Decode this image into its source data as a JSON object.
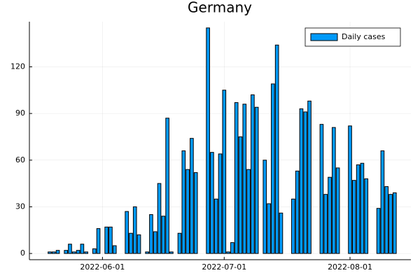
{
  "chart_data": {
    "type": "bar",
    "title": "Germany",
    "x": [
      "2022-05-19",
      "2022-05-20",
      "2022-05-21",
      "2022-05-23",
      "2022-05-24",
      "2022-05-25",
      "2022-05-26",
      "2022-05-27",
      "2022-05-28",
      "2022-05-30",
      "2022-05-31",
      "2022-06-02",
      "2022-06-03",
      "2022-06-04",
      "2022-06-07",
      "2022-06-08",
      "2022-06-09",
      "2022-06-10",
      "2022-06-12",
      "2022-06-13",
      "2022-06-14",
      "2022-06-15",
      "2022-06-16",
      "2022-06-17",
      "2022-06-18",
      "2022-06-20",
      "2022-06-21",
      "2022-06-22",
      "2022-06-23",
      "2022-06-24",
      "2022-06-27",
      "2022-06-28",
      "2022-06-29",
      "2022-06-30",
      "2022-07-01",
      "2022-07-02",
      "2022-07-03",
      "2022-07-04",
      "2022-07-05",
      "2022-07-06",
      "2022-07-07",
      "2022-07-08",
      "2022-07-09",
      "2022-07-11",
      "2022-07-12",
      "2022-07-13",
      "2022-07-14",
      "2022-07-15",
      "2022-07-18",
      "2022-07-19",
      "2022-07-20",
      "2022-07-21",
      "2022-07-22",
      "2022-07-25",
      "2022-07-26",
      "2022-07-27",
      "2022-07-28",
      "2022-07-29",
      "2022-08-01",
      "2022-08-02",
      "2022-08-03",
      "2022-08-04",
      "2022-08-05",
      "2022-08-08",
      "2022-08-09",
      "2022-08-10",
      "2022-08-11",
      "2022-08-12"
    ],
    "series": [
      {
        "name": "Daily cases",
        "color": "#009af9",
        "values": [
          1,
          1,
          2,
          2,
          6,
          1,
          2,
          6,
          1,
          3,
          16,
          17,
          17,
          5,
          27,
          13,
          30,
          12,
          1,
          25,
          14,
          45,
          24,
          87,
          1,
          13,
          66,
          54,
          74,
          52,
          145,
          65,
          35,
          64,
          105,
          1,
          7,
          97,
          75,
          96,
          54,
          102,
          94,
          60,
          32,
          109,
          134,
          26,
          35,
          53,
          93,
          91,
          98,
          83,
          38,
          49,
          81,
          55,
          82,
          47,
          57,
          58,
          48,
          29,
          66,
          43,
          38,
          39
        ]
      }
    ],
    "xlim": [
      "2022-05-14",
      "2022-08-16"
    ],
    "xticks": [
      "2022-06-01",
      "2022-07-01",
      "2022-08-01"
    ],
    "ylim": [
      -4,
      149
    ],
    "yticks": [
      0,
      30,
      60,
      90,
      120
    ],
    "grid": true,
    "legend": "top-right"
  }
}
